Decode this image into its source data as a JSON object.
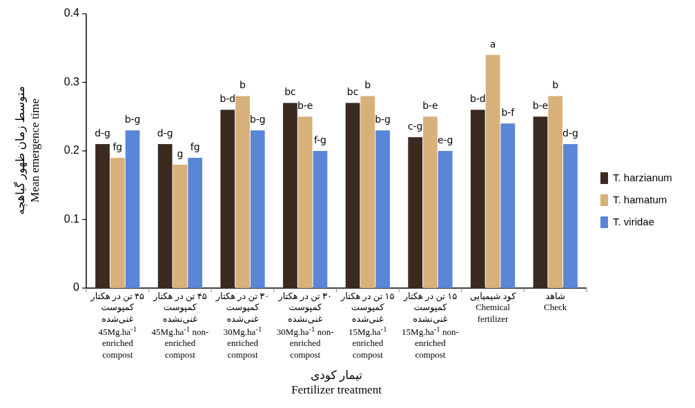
{
  "chart_data": {
    "type": "bar",
    "xlabel": "تیمار کودی\nFertilizer treatment",
    "ylabel": "متوسط زمان ظهور گیاهچه\nMean emergence time",
    "categories": [
      "۴۵ تن در هکتار\nکمپوست غنی‌شده\n45Mg.ha$^{-1}$ enriched compost",
      "۴۵ تن در هکتار\nکمپوست غنی‌نشده\n45Mg.ha$^{-1}$ non-enriched compost",
      "۳۰ تن در هکتار\nکمپوست غنی‌شده\n30Mg.ha$^{-1}$ enriched compost",
      "۳۰ تن در هکتار\nکمپوست غنی‌نشده\n30Mg.ha$^{-1}$ non-enriched compost",
      "۱۵ تن در هکتار\nکمپوست غنی‌شده\n15Mg.ha$^{-1}$ enriched compost",
      "۱۵ تن در هکتار\nکمپوست غنی‌نشده\n15Mg.ha$^{-1}$ non-enriched compost",
      "کود شیمیایی\nChemical fertilizer",
      "شاهد\nCheck"
    ],
    "series": [
      {
        "name": "T. harzianum",
        "color": "#3b2a1f",
        "values": [
          0.21,
          0.21,
          0.26,
          0.27,
          0.27,
          0.22,
          0.26,
          0.25
        ],
        "value_labels": [
          "d-g",
          "d-g",
          "b-d",
          "bc",
          "bc",
          "c-g",
          "b-d",
          "b-e"
        ]
      },
      {
        "name": "T. hamatum",
        "color": "#d8b07a",
        "values": [
          0.19,
          0.18,
          0.28,
          0.25,
          0.28,
          0.25,
          0.34,
          0.28
        ],
        "value_labels": [
          "fg",
          "g",
          "b",
          "b-e",
          "b",
          "b-e",
          "a",
          "b"
        ]
      },
      {
        "name": "T. viridae",
        "color": "#5a86d8",
        "values": [
          0.23,
          0.19,
          0.23,
          0.2,
          0.23,
          0.2,
          0.24,
          0.21
        ],
        "value_labels": [
          "b-g",
          "fg",
          "b-g",
          "f-g",
          "b-g",
          "e-g",
          "b-f",
          "d-g"
        ]
      }
    ],
    "ylim": [
      0,
      0.4
    ],
    "yticks": [
      0,
      0.1,
      0.2,
      0.3,
      0.4
    ],
    "legend": "right"
  }
}
